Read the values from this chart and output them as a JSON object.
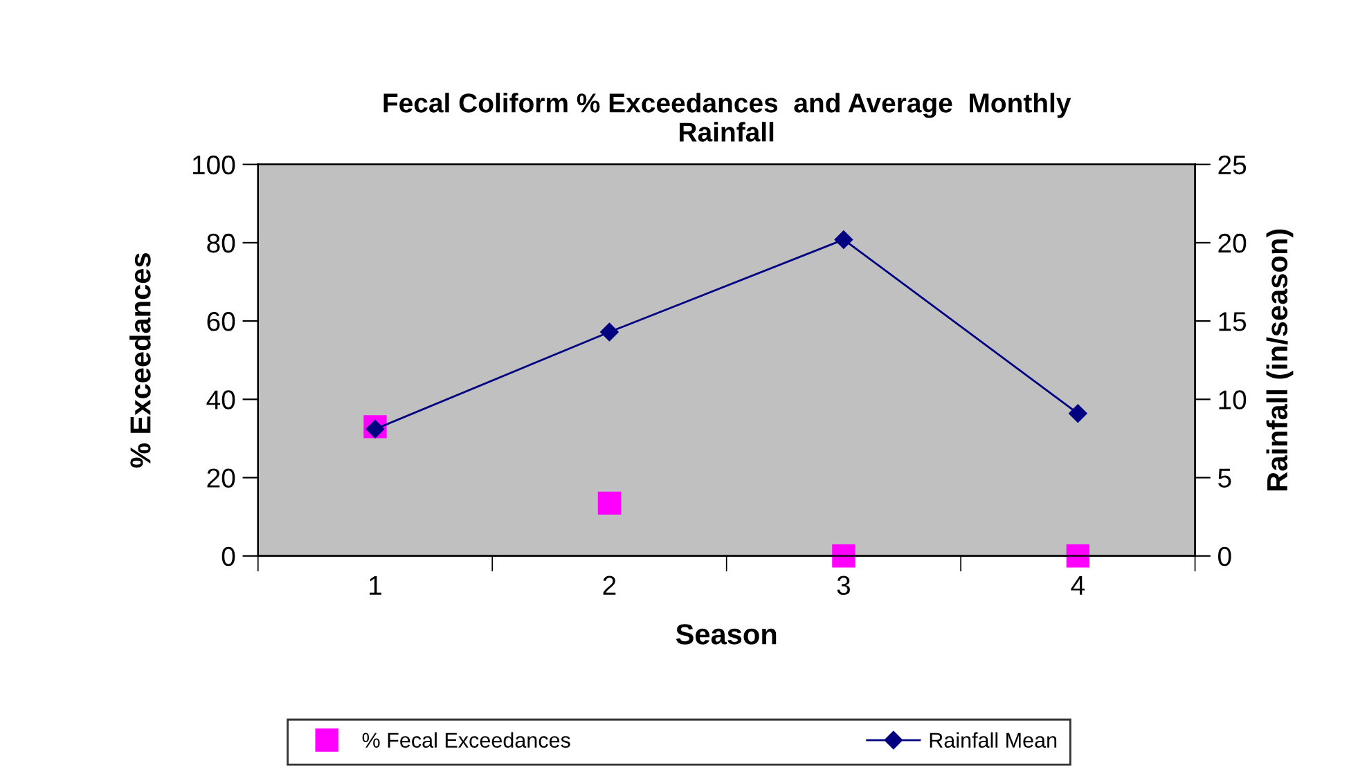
{
  "chart_data": {
    "type": "scatter",
    "title": "Fecal Coliform % Exceedances  and Average  Monthly\nRainfall",
    "xlabel": "Season",
    "ylabel": "% Exceedances",
    "y2label": "Rainfall (in/season)",
    "categories": [
      "1",
      "2",
      "3",
      "4"
    ],
    "series": [
      {
        "name": "% Fecal Exceedances",
        "marker": "square",
        "color": "#ff00ff",
        "values": [
          33,
          13.5,
          0,
          0
        ]
      },
      {
        "name": "Rainfall Mean",
        "type": "line",
        "marker": "diamond",
        "color": "#000080",
        "axis": "y2",
        "values": [
          8.1,
          14.3,
          20.2,
          9.1
        ]
      }
    ],
    "ylim": [
      0,
      100
    ],
    "yticks": [
      0,
      20,
      40,
      60,
      80,
      100
    ],
    "y2lim": [
      0,
      25
    ],
    "y2ticks": [
      0,
      5,
      10,
      15,
      20,
      25
    ],
    "legend": "bottom",
    "grid": false
  }
}
